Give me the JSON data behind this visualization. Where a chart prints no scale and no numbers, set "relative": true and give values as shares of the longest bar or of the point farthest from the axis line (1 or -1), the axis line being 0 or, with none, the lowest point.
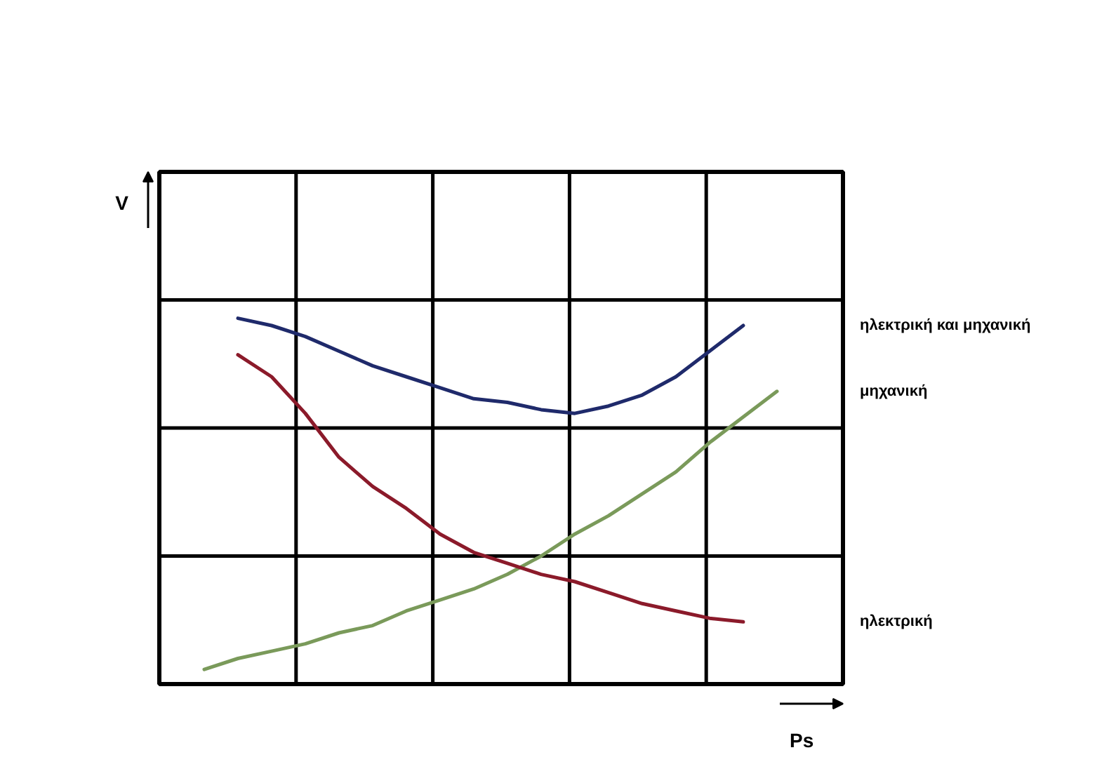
{
  "chart_data": {
    "type": "line",
    "relative": true,
    "xlabel": "Ps",
    "annotations": [
      "V"
    ],
    "grid": true,
    "legend": false,
    "marker": "none",
    "line_style": "solid",
    "categories": [
      null,
      null,
      null,
      null,
      null,
      null,
      null,
      null,
      null,
      null,
      null,
      null,
      null,
      null,
      null,
      null,
      null,
      null
    ],
    "series": [
      {
        "name": "ηλεκτρική και μηχανική",
        "color": "#1f2a6b",
        "values": [
          null,
          1.0,
          0.98,
          0.95,
          0.91,
          0.87,
          0.84,
          0.81,
          0.78,
          0.77,
          0.75,
          0.74,
          0.76,
          0.79,
          0.84,
          0.91,
          0.98,
          null
        ]
      },
      {
        "name": "μηχανική",
        "color": "#7a9a5a",
        "values": [
          0.04,
          0.07,
          0.09,
          0.11,
          0.14,
          0.16,
          0.2,
          0.23,
          0.26,
          0.3,
          0.35,
          0.41,
          0.46,
          0.52,
          0.58,
          0.66,
          0.73,
          0.8
        ]
      },
      {
        "name": "ηλεκτρική",
        "color": "#8b1a2a",
        "values": [
          null,
          0.9,
          0.84,
          0.74,
          0.62,
          0.54,
          0.48,
          0.41,
          0.36,
          0.33,
          0.3,
          0.28,
          0.25,
          0.22,
          0.2,
          0.18,
          0.17,
          null
        ]
      }
    ]
  }
}
